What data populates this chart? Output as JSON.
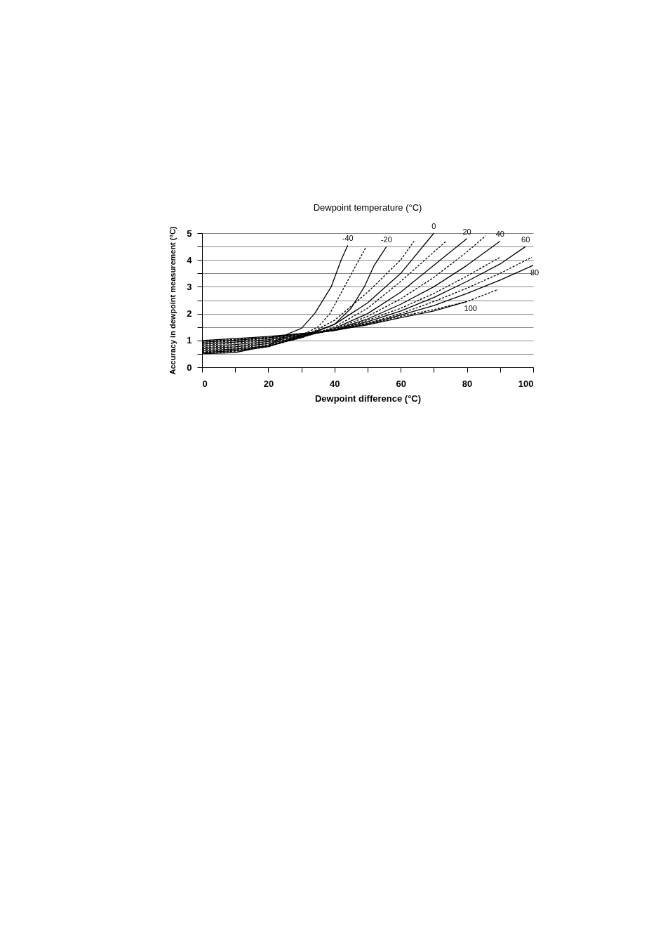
{
  "chart_data": {
    "type": "line",
    "title": "Dewpoint temperature (°C)",
    "xlabel": "Dewpoint difference  (°C)",
    "ylabel": "Accuracy in dewpoint measurement  (°C)",
    "xlim": [
      0,
      100
    ],
    "ylim": [
      0,
      5
    ],
    "xticks": [
      0,
      {
        "value": 10,
        "label": null
      },
      20,
      {
        "value": 30,
        "label": null
      },
      40,
      {
        "value": 50,
        "label": null
      },
      60,
      {
        "value": 70,
        "label": null
      },
      80,
      {
        "value": 90,
        "label": null
      },
      100
    ],
    "yticks": [
      0,
      {
        "value": 0.5,
        "label": null
      },
      1,
      {
        "value": 1.5,
        "label": null
      },
      2,
      {
        "value": 2.5,
        "label": null
      },
      3,
      {
        "value": 3.5,
        "label": null
      },
      4,
      {
        "value": 4.5,
        "label": null
      },
      5
    ],
    "grid": "y",
    "marker": "none",
    "series": [
      {
        "name": "-40",
        "color": "#000000",
        "line_style": "solid",
        "x": [
          0,
          10,
          20,
          26,
          30,
          34,
          39,
          42,
          44
        ],
        "values": [
          0.5,
          0.55,
          0.8,
          1.25,
          1.45,
          2,
          3,
          4,
          4.55
        ]
      },
      {
        "color": "#000000",
        "line_style": "dashed",
        "x": [
          0,
          10,
          20,
          30,
          35,
          38.6,
          43,
          46.5,
          49.6
        ],
        "values": [
          0.52,
          0.6,
          0.76,
          1.2,
          1.5,
          2,
          3,
          3.8,
          4.5
        ]
      },
      {
        "name": "-20",
        "color": "#000000",
        "line_style": "solid",
        "x": [
          0,
          10,
          20,
          30,
          40,
          45,
          49,
          52,
          55.7
        ],
        "values": [
          0.55,
          0.62,
          0.77,
          1.15,
          1.6,
          2.2,
          3,
          3.8,
          4.5
        ]
      },
      {
        "color": "#000000",
        "line_style": "dashed",
        "x": [
          0,
          10,
          20,
          30,
          40,
          50,
          60,
          64
        ],
        "values": [
          0.58,
          0.65,
          0.78,
          1.1,
          1.75,
          2.8,
          4,
          4.7
        ]
      },
      {
        "name": "0",
        "color": "#000000",
        "line_style": "solid",
        "x": [
          0,
          10,
          20,
          30,
          40,
          50,
          60,
          70
        ],
        "values": [
          0.62,
          0.68,
          0.8,
          1.1,
          1.6,
          2.4,
          3.5,
          5
        ]
      },
      {
        "color": "#000000",
        "line_style": "dashed",
        "x": [
          0,
          10,
          20,
          30,
          40,
          50,
          60,
          73.7
        ],
        "values": [
          0.66,
          0.72,
          0.84,
          1.1,
          1.5,
          2.2,
          3.2,
          4.7
        ]
      },
      {
        "name": "20",
        "color": "#000000",
        "line_style": "solid",
        "x": [
          0,
          10,
          20,
          30,
          40,
          50,
          60,
          70,
          80
        ],
        "values": [
          0.7,
          0.76,
          0.88,
          1.12,
          1.45,
          2,
          2.8,
          3.8,
          4.8
        ]
      },
      {
        "color": "#000000",
        "line_style": "dashed",
        "x": [
          0,
          10,
          20,
          30,
          40,
          50,
          60,
          70,
          80,
          85.6
        ],
        "values": [
          0.74,
          0.8,
          0.92,
          1.14,
          1.42,
          1.9,
          2.55,
          3.35,
          4.3,
          4.9
        ]
      },
      {
        "name": "40",
        "color": "#000000",
        "line_style": "solid",
        "x": [
          0,
          10,
          20,
          30,
          40,
          50,
          60,
          70,
          80,
          90
        ],
        "values": [
          0.78,
          0.85,
          0.96,
          1.16,
          1.4,
          1.8,
          2.35,
          3,
          3.8,
          4.7
        ]
      },
      {
        "color": "#000000",
        "line_style": "dashed",
        "x": [
          0,
          10,
          20,
          30,
          40,
          50,
          60,
          70,
          80,
          90
        ],
        "values": [
          0.82,
          0.9,
          1,
          1.18,
          1.38,
          1.75,
          2.2,
          2.75,
          3.4,
          4.1
        ]
      },
      {
        "name": "60",
        "color": "#000000",
        "line_style": "solid",
        "x": [
          0,
          10,
          20,
          30,
          40,
          50,
          60,
          70,
          80,
          90,
          97.7
        ],
        "values": [
          0.86,
          0.94,
          1.03,
          1.2,
          1.38,
          1.7,
          2.1,
          2.6,
          3.2,
          3.85,
          4.5
        ]
      },
      {
        "color": "#000000",
        "line_style": "dashed",
        "x": [
          0,
          10,
          20,
          30,
          40,
          50,
          60,
          70,
          80,
          90,
          99.6
        ],
        "values": [
          0.9,
          0.98,
          1.07,
          1.22,
          1.37,
          1.65,
          2,
          2.45,
          2.95,
          3.5,
          4.1
        ]
      },
      {
        "name": "80",
        "color": "#000000",
        "line_style": "solid",
        "x": [
          0,
          10,
          20,
          30,
          40,
          50,
          60,
          70,
          80,
          90,
          100
        ],
        "values": [
          0.93,
          1.01,
          1.1,
          1.24,
          1.37,
          1.62,
          1.95,
          2.3,
          2.75,
          3.25,
          3.8
        ]
      },
      {
        "color": "#000000",
        "line_style": "dashed",
        "x": [
          0,
          10,
          20,
          30,
          40,
          50,
          60,
          70,
          80,
          89.4
        ],
        "values": [
          0.97,
          1.04,
          1.12,
          1.25,
          1.37,
          1.6,
          1.9,
          2.15,
          2.45,
          2.9
        ]
      },
      {
        "name": "100",
        "color": "#000000",
        "line_style": "solid",
        "x": [
          0,
          10,
          20,
          30,
          40,
          50,
          60,
          70,
          80
        ],
        "values": [
          1,
          1.07,
          1.15,
          1.26,
          1.38,
          1.58,
          1.85,
          2.1,
          2.45
        ]
      }
    ]
  }
}
